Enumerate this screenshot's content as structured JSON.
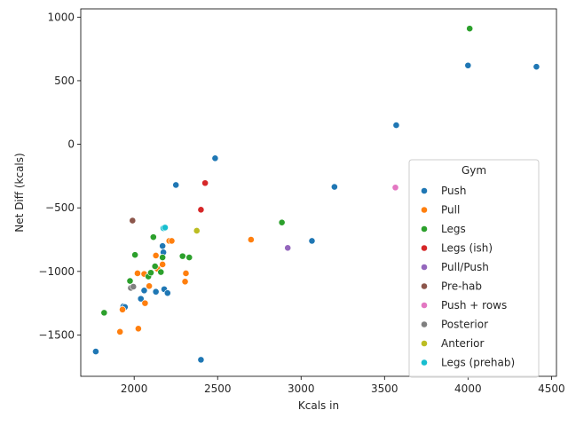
{
  "chart_data": {
    "type": "scatter",
    "xlabel": "Kcals in",
    "ylabel": "Net Diff (kcals)",
    "xlim": [
      1680,
      4530
    ],
    "ylim": [
      -1825,
      1065
    ],
    "xticks": [
      2000,
      2500,
      3000,
      3500,
      4000,
      4500
    ],
    "yticks": [
      -1500,
      -1000,
      -500,
      0,
      500,
      1000
    ],
    "grid": false,
    "legend": {
      "title": "Gym",
      "placement": "lower-right"
    },
    "series": [
      {
        "name": "Push",
        "color": "#1f77b4",
        "points": [
          [
            1770,
            -1630
          ],
          [
            1935,
            -1275
          ],
          [
            1945,
            -1280
          ],
          [
            2040,
            -1215
          ],
          [
            2060,
            -1150
          ],
          [
            2130,
            -1160
          ],
          [
            2180,
            -1140
          ],
          [
            2200,
            -1170
          ],
          [
            2170,
            -800
          ],
          [
            2175,
            -850
          ],
          [
            2250,
            -320
          ],
          [
            2485,
            -110
          ],
          [
            2400,
            -1695
          ],
          [
            3065,
            -760
          ],
          [
            3200,
            -335
          ],
          [
            3570,
            150
          ],
          [
            4000,
            620
          ],
          [
            4410,
            610
          ]
        ]
      },
      {
        "name": "Pull",
        "color": "#ff7f0e",
        "points": [
          [
            1915,
            -1475
          ],
          [
            1930,
            -1300
          ],
          [
            2020,
            -1015
          ],
          [
            2025,
            -1450
          ],
          [
            2060,
            -1020
          ],
          [
            2065,
            -1250
          ],
          [
            2090,
            -1115
          ],
          [
            2130,
            -875
          ],
          [
            2140,
            -980
          ],
          [
            2170,
            -945
          ],
          [
            2210,
            -760
          ],
          [
            2225,
            -760
          ],
          [
            2305,
            -1080
          ],
          [
            2310,
            -1015
          ],
          [
            2700,
            -750
          ]
        ]
      },
      {
        "name": "Legs",
        "color": "#2ca02c",
        "points": [
          [
            1820,
            -1325
          ],
          [
            1975,
            -1075
          ],
          [
            2005,
            -870
          ],
          [
            2085,
            -1040
          ],
          [
            2100,
            -1010
          ],
          [
            2115,
            -730
          ],
          [
            2125,
            -960
          ],
          [
            2160,
            -1005
          ],
          [
            2170,
            -890
          ],
          [
            2290,
            -880
          ],
          [
            2330,
            -890
          ],
          [
            2885,
            -615
          ],
          [
            4010,
            910
          ]
        ]
      },
      {
        "name": "Legs (ish)",
        "color": "#d62728",
        "points": [
          [
            2400,
            -515
          ],
          [
            2425,
            -305
          ]
        ]
      },
      {
        "name": "Pull/Push",
        "color": "#9467bd",
        "points": [
          [
            2920,
            -815
          ]
        ]
      },
      {
        "name": "Pre-hab",
        "color": "#8c564b",
        "points": [
          [
            1990,
            -600
          ]
        ]
      },
      {
        "name": "Push + rows",
        "color": "#e377c2",
        "points": [
          [
            3565,
            -340
          ]
        ]
      },
      {
        "name": "Posterior",
        "color": "#7f7f7f",
        "points": [
          [
            1980,
            -1130
          ],
          [
            1995,
            -1120
          ]
        ]
      },
      {
        "name": "Anterior",
        "color": "#bcbd22",
        "points": [
          [
            2375,
            -680
          ]
        ]
      },
      {
        "name": "Legs (prehab)",
        "color": "#17becf",
        "points": [
          [
            2175,
            -660
          ],
          [
            2185,
            -655
          ]
        ]
      }
    ]
  }
}
